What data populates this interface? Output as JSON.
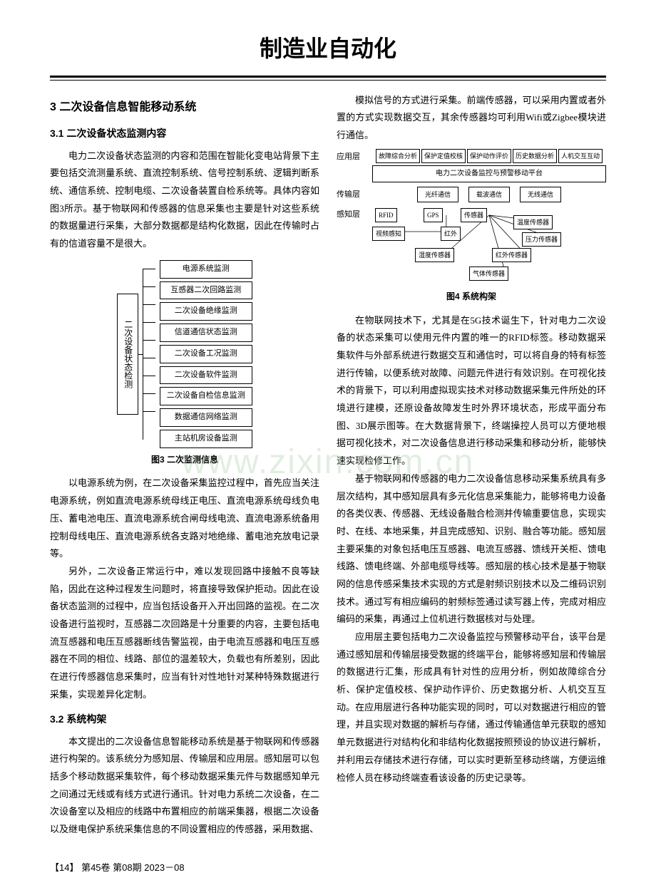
{
  "journal": "制造业自动化",
  "section3": {
    "title": "3 二次设备信息智能移动系统",
    "s31": {
      "title": "3.1 二次设备状态监测内容",
      "p1": "电力二次设备状态监测的内容和范围在智能化变电站背景下主要包括交流测量系统、直流控制系统、信号控制系统、逻辑判断系统、通信系统、控制电缆、二次设备装置自检系统等。具体内容如图3所示。基于物联网和传感器的信息采集也主要是针对这些系统的数据量进行采集，大部分数据都是结构化数据，因此在传输时占有的信道容量不是很大。",
      "fig3_root": "二次设备状态检测",
      "fig3_items": [
        "电源系统监测",
        "互感器二次回路监测",
        "二次设备绝缘监测",
        "信道通信状态监测",
        "二次设备工况监测",
        "二次设备软件监测",
        "二次设备自检信息监测",
        "数据通信网络监测",
        "主站机房设备监测"
      ],
      "fig3_caption": "图3 二次监测信息",
      "p2": "以电源系统为例，在二次设备采集监控过程中，首先应当关注电源系统，例如直流电源系统母线正电压、直流电源系统母线负电压、蓄电池电压、直流电源系统合闸母线电流、直流电源系统备用控制母线电压、直流电源系统各支路对地绝缘、蓄电池充放电记录等。",
      "p3": "另外，二次设备正常运行中，难以发现回路中接触不良等缺陷，因此在这种过程发生问题时，将直接导致保护拒动。因此在设备状态监测的过程中，应当包括设备开入开出回路的监视。在二次设备进行监视时，互感器二次回路是十分重要的内容，主要包括电流互感器和电压互感器断线告警监视，由于电流互感器和电压互感器在不同的相位、线路、部位的温差较大，负载也有所差别，因此在进行传感器信息采集时，应当有针对性地针对某种特殊数据进行采集，实现差异化定制。"
    },
    "s32": {
      "title": "3.2 系统构架",
      "p1": "本文提出的二次设备信息智能移动系统是基于物联网和传感器进行构架的。该系统分为感知层、传输层和应用层。感知层可以包括多个移动数据采集软件，每个移动数据采集元件与数据感知单元之间通过无线或有线方式进行通讯。针对电力系统二次设备，在二次设备室以及相应的线路中布置相应的前端采集器，根据二次设备以及继电保护系统采集信息的不同设置相应的传感器，采用数据、"
    }
  },
  "rightcol": {
    "p1": "模拟信号的方式进行采集。前端传感器，可以采用内置或者外置的方式实现数据交互，其余传感器均可利用Wifi或Zigbee模块进行通信。",
    "fig4": {
      "app_layer": "应用层",
      "app_boxes": [
        "故障综合分析",
        "保护定值校核",
        "保护动作评价",
        "历史数据分析",
        "人机交互互动"
      ],
      "app_platform": "电力二次设备监控与预警移动平台",
      "trans_layer": "传输层",
      "trans_boxes": [
        "光纤通信",
        "载波通信",
        "无线通信"
      ],
      "sense_layer": "感知层",
      "sense": {
        "rfid": "RFID",
        "gps": "GPS",
        "sensor": "传感器",
        "video": "视频感知",
        "ir": "红外",
        "temp": "温度传感器",
        "pressure": "压力传感器",
        "humidity": "湿度传感器",
        "ir_sensor": "红外传感器",
        "gas": "气体传感器"
      },
      "caption": "图4 系统构架"
    },
    "p2": "在物联网技术下，尤其是在5G技术诞生下，针对电力二次设备的状态采集可以使用元件内置的唯一的RFID标签。移动数据采集软件与外部系统进行数据交互和通信时，可以将自身的特有标签进行传输，以便系统对故障、问题元件进行有效识别。在可视化技术的背景下，可以利用虚拟现实技术对移动数据采集元件所处的环境进行建模，还原设备故障发生时外界环境状态，形成平面分布图、3D展示图等。在大数据背景下，终端操控人员可以方便地根据可视化技术，对二次设备信息进行移动采集和移动分析，能够快速实现检修工作。",
    "p3": "基于物联网和传感器的电力二次设备信息移动采集系统具有多层次结构，其中感知层具有多元化信息采集能力，能够将电力设备的各类仪表、传感器、无线设备融合检测并传输重要信息，实现实时、在线、本地采集，并且完成感知、识别、融合等功能。感知层主要采集的对象包括电压互感器、电流互感器、馈线开关柜、馈电线路、馈电终端、外部电缆导线等。感知层的核心技术是基于物联网的信息传感采集技术实现的方式是射频识别技术以及二维码识别技术。通过写有相应编码的射频标签通过读写器上传，完成对相应编码的采集，再通过上位机进行数据核对与处理。",
    "p4": "应用层主要包括电力二次设备监控与预警移动平台，该平台是通过感知层和传输层接受数据的终端平台，能够将感知层和传输层的数据进行汇集，形成具有针对性的应用分析，例如故障综合分析、保护定值校核、保护动作评价、历史数据分析、人机交互互动。在应用层进行各种功能实现的同时，可以对数据进行相应的管理，并且实现对数据的解析与存储，通过传输通信单元获取的感知单元数据进行对结构化和非结构化数据按照预设的协议进行解析，并利用云存储技术进行存储，可以实时更新至移动终端，方便运维检修人员在移动终端查看该设备的历史记录等。"
  },
  "footer": "【14】 第45卷 第08期 2023－08",
  "watermark": "www.zixin.com.cn"
}
